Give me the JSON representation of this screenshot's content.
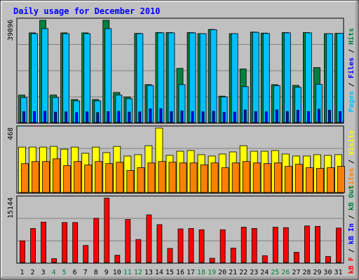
{
  "chart_data": {
    "type": "bar",
    "title": "Daily usage for December 2010",
    "days": [
      "1",
      "2",
      "3",
      "4",
      "5",
      "6",
      "7",
      "8",
      "9",
      "10",
      "11",
      "12",
      "13",
      "14",
      "15",
      "16",
      "17",
      "18",
      "19",
      "20",
      "21",
      "22",
      "23",
      "24",
      "25",
      "26",
      "27",
      "28",
      "29",
      "30",
      "31"
    ],
    "weekend_days": [
      4,
      5,
      11,
      12,
      18,
      19,
      25,
      26
    ],
    "panels": [
      {
        "name": "hits-files-pages",
        "ymax_label": "39096",
        "ymax": 39096,
        "legend": [
          "Pages",
          "Files",
          "Hits"
        ],
        "series": [
          {
            "name": "Hits",
            "color": "#008040",
            "values": [
              10500,
              34300,
              39096,
              10500,
              34300,
              8800,
              34300,
              8800,
              39096,
              11500,
              9800,
              34100,
              14500,
              34400,
              34400,
              20700,
              34400,
              34000,
              35600,
              10100,
              34000,
              20500,
              34600,
              34200,
              14500,
              34400,
              14200,
              34400,
              21000,
              34000,
              34100
            ]
          },
          {
            "name": "Files",
            "color": "#00c0ff",
            "values": [
              9600,
              34000,
              35900,
              9600,
              34000,
              8300,
              34000,
              8300,
              35900,
              10500,
              9100,
              34000,
              14200,
              34300,
              34300,
              14500,
              34300,
              34000,
              35500,
              9800,
              34000,
              13700,
              34500,
              34100,
              14100,
              34300,
              13500,
              34300,
              14600,
              34000,
              34100
            ]
          },
          {
            "name": "Pages",
            "color": "#0000ff",
            "values": [
              4200,
              4200,
              4300,
              4000,
              4100,
              3800,
              4100,
              3800,
              4200,
              4300,
              4000,
              4100,
              5200,
              5300,
              4200,
              4400,
              4200,
              4100,
              4300,
              3900,
              4000,
              4800,
              4200,
              4100,
              4800,
              4200,
              4700,
              4200,
              5100,
              4700,
              4200
            ]
          }
        ]
      },
      {
        "name": "visits-sites",
        "ymax_label": "468",
        "ymax": 468,
        "legend": [
          "Sites",
          "Visits"
        ],
        "series": [
          {
            "name": "Visits",
            "color": "#ffff00",
            "values": [
              330,
              330,
              330,
              335,
              315,
              330,
              285,
              330,
              290,
              335,
              265,
              275,
              340,
              468,
              270,
              300,
              305,
              275,
              265,
              280,
              295,
              340,
              300,
              300,
              305,
              280,
              265,
              265,
              275,
              270,
              275
            ]
          },
          {
            "name": "Sites",
            "color": "#ff8000",
            "values": [
              210,
              225,
              225,
              245,
              195,
              225,
              200,
              225,
              210,
              220,
              160,
              180,
              215,
              225,
              220,
              215,
              215,
              200,
              215,
              180,
              215,
              225,
              215,
              210,
              215,
              190,
              205,
              180,
              175,
              180,
              190
            ]
          }
        ]
      },
      {
        "name": "kbytes",
        "ymax_label": "15144",
        "ymax": 15144,
        "legend": [
          "kB F",
          "kB In",
          "kB Out"
        ],
        "series": [
          {
            "name": "kB F",
            "color": "#ff0000",
            "values": [
              5100,
              8000,
              9500,
              900,
              9400,
              9400,
              4000,
              10400,
              15144,
              1700,
              10100,
              5400,
              11200,
              8900,
              3300,
              7900,
              8000,
              7700,
              1000,
              7700,
              3400,
              8300,
              8000,
              1600,
              8300,
              8200,
              2400,
              8600,
              8500,
              1400,
              8100
            ]
          }
        ]
      }
    ]
  }
}
